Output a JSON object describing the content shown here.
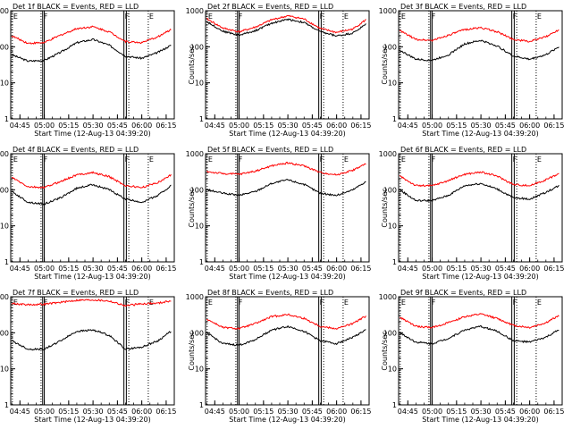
{
  "chart_data": {
    "type": "line",
    "layout": "3x3 grid",
    "ylabel": "Counts/sec",
    "xlabel": "Start Time (12-Aug-13 04:39:20)",
    "yscale": "log",
    "ylim": [
      1,
      1000
    ],
    "xlim": [
      "04:39:20",
      "06:20:00"
    ],
    "yticks": [
      1,
      10,
      100,
      1000
    ],
    "yticklabels": [
      "1",
      "10",
      "100",
      "1000"
    ],
    "xticks": [
      "04:45",
      "05:00",
      "05:15",
      "05:30",
      "05:45",
      "06:00",
      "06:15"
    ],
    "grid": false,
    "markers": [
      {
        "label": "E",
        "x": "04:40:20",
        "style": "dotted"
      },
      {
        "label": "",
        "x": "04:58:00",
        "style": "dotted"
      },
      {
        "label": "F",
        "x": "04:59:00",
        "style": "solid"
      },
      {
        "label": "",
        "x": "05:00:00",
        "style": "solid"
      },
      {
        "label": "F",
        "x": "05:49:00",
        "style": "solid"
      },
      {
        "label": "",
        "x": "05:50:30",
        "style": "solid"
      },
      {
        "label": "",
        "x": "05:52:00",
        "style": "dotted"
      },
      {
        "label": "E",
        "x": "06:04:00",
        "style": "dotted"
      }
    ],
    "panels": [
      {
        "title": "Det 1f BLACK = Events, RED = LLD",
        "series": [
          {
            "name": "Events",
            "color": "#000000",
            "x": [
              "04:40",
              "04:50",
              "05:00",
              "05:10",
              "05:20",
              "05:30",
              "05:40",
              "05:50",
              "06:00",
              "06:10",
              "06:18"
            ],
            "values": [
              60,
              40,
              42,
              70,
              130,
              160,
              110,
              55,
              48,
              70,
              110
            ]
          },
          {
            "name": "LLD",
            "color": "#ff0000",
            "x": [
              "04:40",
              "04:50",
              "05:00",
              "05:10",
              "05:20",
              "05:30",
              "05:40",
              "05:50",
              "06:00",
              "06:10",
              "06:18"
            ],
            "values": [
              200,
              125,
              130,
              210,
              320,
              360,
              260,
              140,
              130,
              190,
              300
            ]
          }
        ]
      },
      {
        "title": "Det 2f BLACK = Events, RED = LLD",
        "series": [
          {
            "name": "Events",
            "color": "#000000",
            "x": [
              "04:40",
              "04:50",
              "05:00",
              "05:10",
              "05:20",
              "05:30",
              "05:40",
              "05:50",
              "06:00",
              "06:10",
              "06:18"
            ],
            "values": [
              500,
              270,
              210,
              280,
              450,
              580,
              470,
              260,
              200,
              240,
              420
            ]
          },
          {
            "name": "LLD",
            "color": "#ff0000",
            "x": [
              "04:40",
              "04:50",
              "05:00",
              "05:10",
              "05:20",
              "05:30",
              "05:40",
              "05:50",
              "06:00",
              "06:10",
              "06:18"
            ],
            "values": [
              600,
              330,
              260,
              350,
              560,
              720,
              590,
              320,
              250,
              310,
              560
            ]
          }
        ]
      },
      {
        "title": "Det 3f BLACK = Events, RED = LLD",
        "series": [
          {
            "name": "Events",
            "color": "#000000",
            "x": [
              "04:40",
              "04:50",
              "05:00",
              "05:10",
              "05:20",
              "05:30",
              "05:40",
              "05:50",
              "06:00",
              "06:10",
              "06:18"
            ],
            "values": [
              80,
              45,
              42,
              60,
              120,
              150,
              105,
              55,
              45,
              60,
              100
            ]
          },
          {
            "name": "LLD",
            "color": "#ff0000",
            "x": [
              "04:40",
              "04:50",
              "05:00",
              "05:10",
              "05:20",
              "05:30",
              "05:40",
              "05:50",
              "06:00",
              "06:10",
              "06:18"
            ],
            "values": [
              280,
              160,
              150,
              210,
              300,
              340,
              260,
              160,
              140,
              190,
              300
            ]
          }
        ]
      },
      {
        "title": "Det 4f BLACK = Events, RED = LLD",
        "series": [
          {
            "name": "Events",
            "color": "#000000",
            "x": [
              "04:40",
              "04:50",
              "05:00",
              "05:10",
              "05:20",
              "05:30",
              "05:40",
              "05:50",
              "06:00",
              "06:10",
              "06:18"
            ],
            "values": [
              90,
              45,
              40,
              60,
              110,
              140,
              100,
              55,
              45,
              70,
              130
            ]
          },
          {
            "name": "LLD",
            "color": "#ff0000",
            "x": [
              "04:40",
              "04:50",
              "05:00",
              "05:10",
              "05:20",
              "05:30",
              "05:40",
              "05:50",
              "06:00",
              "06:10",
              "06:18"
            ],
            "values": [
              220,
              120,
              115,
              170,
              260,
              300,
              230,
              130,
              115,
              160,
              260
            ]
          }
        ]
      },
      {
        "title": "Det 5f BLACK = Events, RED = LLD",
        "series": [
          {
            "name": "Events",
            "color": "#000000",
            "x": [
              "04:40",
              "04:50",
              "05:00",
              "05:10",
              "05:20",
              "05:30",
              "05:40",
              "05:50",
              "06:00",
              "06:10",
              "06:18"
            ],
            "values": [
              100,
              80,
              70,
              90,
              150,
              190,
              140,
              80,
              70,
              100,
              170
            ]
          },
          {
            "name": "LLD",
            "color": "#ff0000",
            "x": [
              "04:40",
              "04:50",
              "05:00",
              "05:10",
              "05:20",
              "05:30",
              "05:40",
              "05:50",
              "06:00",
              "06:10",
              "06:18"
            ],
            "values": [
              320,
              280,
              270,
              330,
              460,
              560,
              460,
              300,
              260,
              350,
              520
            ]
          }
        ]
      },
      {
        "title": "Det 6f BLACK = Events, RED = LLD",
        "series": [
          {
            "name": "Events",
            "color": "#000000",
            "x": [
              "04:40",
              "04:50",
              "05:00",
              "05:10",
              "05:20",
              "05:30",
              "05:40",
              "05:50",
              "06:00",
              "06:10",
              "06:18"
            ],
            "values": [
              100,
              50,
              50,
              70,
              130,
              150,
              105,
              60,
              55,
              85,
              130
            ]
          },
          {
            "name": "LLD",
            "color": "#ff0000",
            "x": [
              "04:40",
              "04:50",
              "05:00",
              "05:10",
              "05:20",
              "05:30",
              "05:40",
              "05:50",
              "06:00",
              "06:10",
              "06:18"
            ],
            "values": [
              240,
              130,
              130,
              180,
              270,
              310,
              240,
              140,
              130,
              190,
              280
            ]
          }
        ]
      },
      {
        "title": "Det 7f BLACK = Events, RED = LLD",
        "series": [
          {
            "name": "Events",
            "color": "#000000",
            "x": [
              "04:40",
              "04:50",
              "05:00",
              "05:10",
              "05:20",
              "05:30",
              "05:40",
              "05:50",
              "06:00",
              "06:10",
              "06:18"
            ],
            "values": [
              60,
              35,
              35,
              60,
              110,
              120,
              85,
              35,
              40,
              60,
              110
            ]
          },
          {
            "name": "LLD",
            "color": "#ff0000",
            "x": [
              "04:40",
              "04:50",
              "05:00",
              "05:10",
              "05:20",
              "05:30",
              "05:40",
              "05:50",
              "06:00",
              "06:10",
              "06:18"
            ],
            "values": [
              650,
              600,
              620,
              700,
              800,
              820,
              760,
              560,
              640,
              660,
              780
            ]
          }
        ]
      },
      {
        "title": "Det 8f BLACK = Events, RED = LLD",
        "series": [
          {
            "name": "Events",
            "color": "#000000",
            "x": [
              "04:40",
              "04:50",
              "05:00",
              "05:10",
              "05:20",
              "05:30",
              "05:40",
              "05:50",
              "06:00",
              "06:10",
              "06:18"
            ],
            "values": [
              100,
              50,
              45,
              65,
              120,
              150,
              110,
              60,
              50,
              75,
              120
            ]
          },
          {
            "name": "LLD",
            "color": "#ff0000",
            "x": [
              "04:40",
              "04:50",
              "05:00",
              "05:10",
              "05:20",
              "05:30",
              "05:40",
              "05:50",
              "06:00",
              "06:10",
              "06:18"
            ],
            "values": [
              240,
              140,
              130,
              180,
              280,
              320,
              250,
              150,
              130,
              180,
              290
            ]
          }
        ]
      },
      {
        "title": "Det 9f BLACK = Events, RED = LLD",
        "series": [
          {
            "name": "Events",
            "color": "#000000",
            "x": [
              "04:40",
              "04:50",
              "05:00",
              "05:10",
              "05:20",
              "05:30",
              "05:40",
              "05:50",
              "06:00",
              "06:10",
              "06:18"
            ],
            "values": [
              100,
              55,
              50,
              70,
              120,
              150,
              110,
              60,
              55,
              75,
              120
            ]
          },
          {
            "name": "LLD",
            "color": "#ff0000",
            "x": [
              "04:40",
              "04:50",
              "05:00",
              "05:10",
              "05:20",
              "05:30",
              "05:40",
              "05:50",
              "06:00",
              "06:10",
              "06:18"
            ],
            "values": [
              270,
              150,
              140,
              190,
              280,
              330,
              250,
              160,
              140,
              190,
              300
            ]
          }
        ]
      }
    ]
  }
}
